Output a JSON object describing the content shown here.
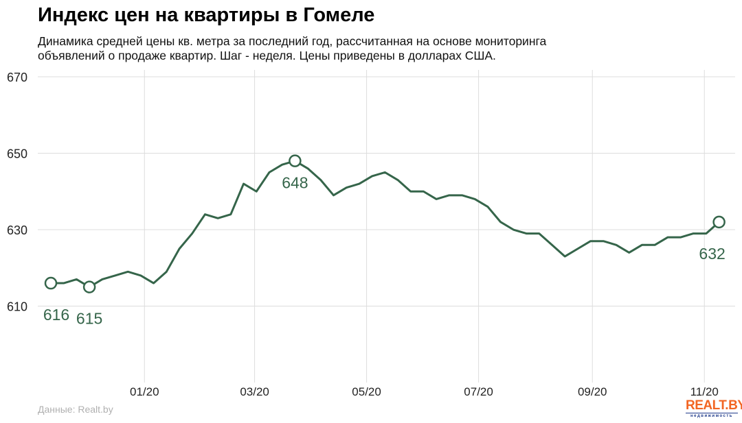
{
  "header": {
    "title": "Индекс цен на квартиры в Гомеле",
    "subtitle_line1": "Динамика средней цены кв. метра за последний год, рассчитанная на основе мониторинга",
    "subtitle_line2": "объявлений о продаже квартир. Шаг - неделя. Цены приведены в долларах США."
  },
  "footer": {
    "source": "Данные: Realt.by",
    "logo_main": "REALT.BY",
    "logo_sub": "недвижимость"
  },
  "colors": {
    "line": "#35654a",
    "grid": "#dddddd",
    "label": "#35654a"
  },
  "chart_data": {
    "type": "line",
    "title": "Индекс цен на квартиры в Гомеле",
    "xlabel": "",
    "ylabel": "",
    "x_unit": "week index (weekly steps)",
    "ylim": [
      590,
      670
    ],
    "yticks": [
      610,
      630,
      650,
      670
    ],
    "xticks": [
      {
        "label": "01/20",
        "day": 51
      },
      {
        "label": "03/20",
        "day": 111
      },
      {
        "label": "05/20",
        "day": 172
      },
      {
        "label": "07/20",
        "day": 233
      },
      {
        "label": "09/20",
        "day": 295
      },
      {
        "label": "11/20",
        "day": 356
      }
    ],
    "days_per_step": 7,
    "grid": true,
    "series": [
      {
        "name": "Цена кв. метра, USD",
        "values": [
          616,
          616,
          617,
          615,
          617,
          618,
          619,
          618,
          616,
          619,
          625,
          629,
          634,
          633,
          634,
          642,
          640,
          645,
          647,
          648,
          646,
          643,
          639,
          641,
          642,
          644,
          645,
          643,
          640,
          640,
          638,
          639,
          639,
          638,
          636,
          632,
          630,
          629,
          629,
          626,
          623,
          625,
          627,
          627,
          626,
          624,
          626,
          626,
          628,
          628,
          629,
          629,
          632
        ]
      }
    ],
    "annotations": [
      {
        "index": 0,
        "label": "616"
      },
      {
        "index": 3,
        "label": "615"
      },
      {
        "index": 19,
        "label": "648"
      },
      {
        "index": 52,
        "label": "632"
      }
    ]
  }
}
